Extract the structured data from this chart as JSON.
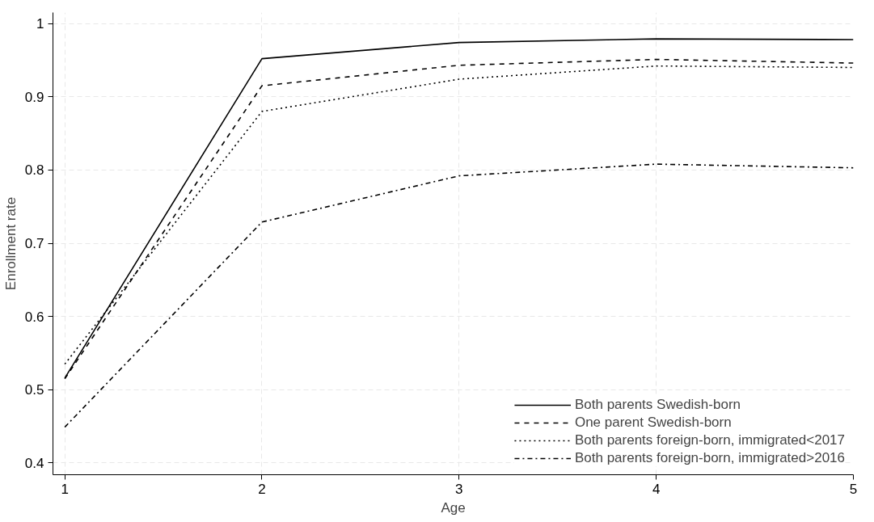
{
  "chart_data": {
    "type": "line",
    "xlabel": "Age",
    "ylabel": "Enrollment rate",
    "x": [
      1,
      2,
      3,
      4,
      5
    ],
    "series": [
      {
        "name": "Both parents Swedish-born",
        "color": "#000000",
        "line_style": "solid",
        "values": [
          0.516,
          0.952,
          0.974,
          0.979,
          0.978
        ]
      },
      {
        "name": "One parent Swedish-born",
        "color": "#000000",
        "line_style": "dashed",
        "values": [
          0.515,
          0.915,
          0.943,
          0.951,
          0.946
        ]
      },
      {
        "name": "Both parents foreign-born, immigrated<2017",
        "color": "#000000",
        "line_style": "dotted",
        "values": [
          0.535,
          0.88,
          0.924,
          0.942,
          0.94
        ]
      },
      {
        "name": "Both parents foreign-born, immigrated>2016",
        "color": "#000000",
        "line_style": "dashdot",
        "values": [
          0.449,
          0.729,
          0.792,
          0.808,
          0.803
        ]
      }
    ],
    "xlim": [
      0.94,
      5
    ],
    "xticks": [
      1,
      2,
      3,
      4,
      5
    ],
    "ylim": [
      0.384,
      1.015
    ],
    "yticks": [
      0.4,
      0.5,
      0.6,
      0.7,
      0.8,
      0.9,
      1
    ],
    "grid": true,
    "legend": "bottom right",
    "marker": "none"
  }
}
